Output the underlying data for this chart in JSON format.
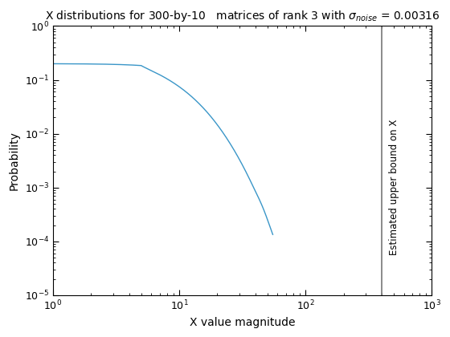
{
  "title": "X distributions for 300-by-10   matrices of rank 3 with $\\sigma_{noise}$ = 0.00316",
  "xlabel": "X value magnitude",
  "ylabel": "Probability",
  "xlim": [
    1,
    1000
  ],
  "ylim": [
    1e-05,
    1
  ],
  "vline_x": 400,
  "vline_label": "Estimated upper bound on X",
  "line_color": "#3a96c8",
  "vline_color": "#777777",
  "background_color": "#ffffff",
  "title_fontsize": 10,
  "axis_fontsize": 10,
  "tick_fontsize": 9
}
